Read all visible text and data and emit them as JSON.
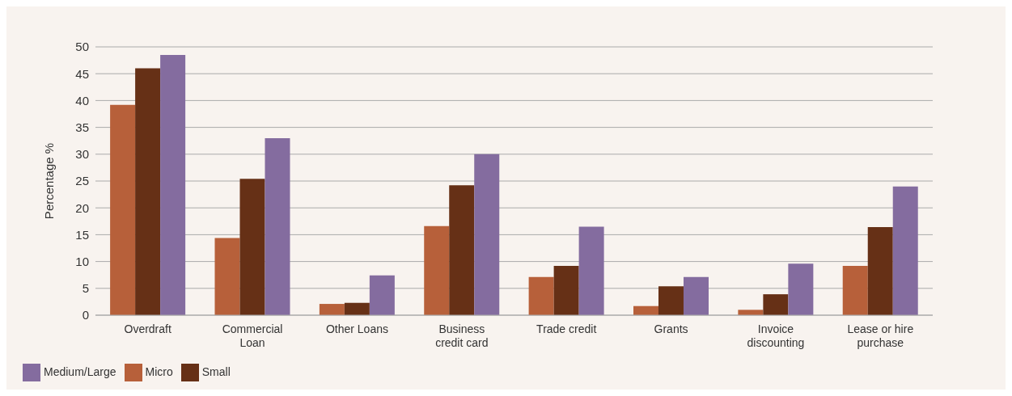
{
  "chart_data": {
    "type": "bar",
    "ylabel": "Percentage %",
    "categories": [
      "Overdraft",
      "Commercial Loan",
      "Other Loans",
      "Business credit card",
      "Trade credit",
      "Grants",
      "Invoice discounting",
      "Lease or hire purchase"
    ],
    "series": [
      {
        "name": "Micro",
        "color": "#b7603a",
        "values": [
          39.2,
          14.4,
          2.1,
          16.6,
          7.1,
          1.7,
          1.0,
          9.2
        ]
      },
      {
        "name": "Small",
        "color": "#663016",
        "values": [
          46.0,
          25.4,
          2.3,
          24.2,
          9.2,
          5.4,
          3.9,
          16.4
        ]
      },
      {
        "name": "Medium/Large",
        "color": "#846c9f",
        "values": [
          48.5,
          33.0,
          7.4,
          30.0,
          16.5,
          7.1,
          9.6,
          24.0
        ]
      }
    ],
    "ylim": [
      0,
      50
    ],
    "yticks": [
      0,
      5,
      10,
      15,
      20,
      25,
      30,
      35,
      40,
      45,
      50
    ],
    "grid": "y",
    "legend": "bottom left"
  }
}
